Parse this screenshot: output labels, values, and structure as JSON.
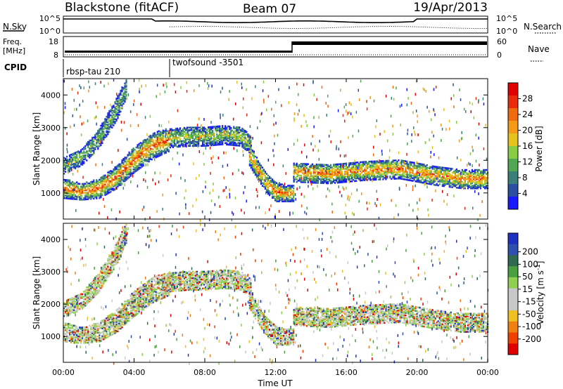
{
  "header": {
    "site": "Blackstone (fitACF)",
    "beam": "Beam 07",
    "date": "19/Apr/2013"
  },
  "top_panels": {
    "nsky_label": "N.Sky",
    "nsearch_label": "N.Search",
    "nsky_ticks": [
      "10^5",
      "10^0"
    ],
    "nsearch_ticks": [
      "10^5",
      "10^0"
    ],
    "freq_label_1": "Freq.",
    "freq_label_2": "[MHz]",
    "freq_ticks": [
      "18",
      "8"
    ],
    "nave_label": "Nave",
    "nave_ticks": [
      "60",
      "0"
    ],
    "cpid_label": "CPID",
    "cpid_segments": [
      {
        "name": "rbsp-tau 210",
        "start_hour": 0,
        "end_hour": 6
      },
      {
        "name": "twofsound -3501",
        "start_hour": 6,
        "end_hour": 24
      }
    ]
  },
  "time_axis": {
    "label": "Time UT",
    "ticks": [
      "00:00",
      "04:00",
      "08:00",
      "12:00",
      "16:00",
      "20:00",
      "00:00"
    ]
  },
  "chart_data": [
    {
      "type": "heatmap",
      "name": "power",
      "ylabel": "Slant Range [km]",
      "yticks": [
        1000,
        2000,
        3000,
        4000
      ],
      "ylim": [
        200,
        4500
      ],
      "xlim_hours": [
        0,
        24
      ],
      "colorbar_label": "Power [dB]",
      "colorbar_ticks": [
        4,
        8,
        12,
        16,
        20,
        24,
        28
      ],
      "colorbar_colors": [
        "#1a1aff",
        "#2b4fa3",
        "#3b7f7a",
        "#52a852",
        "#88cc44",
        "#e6c21a",
        "#f59a14",
        "#f06a10",
        "#e82b0c",
        "#e00000"
      ],
      "echo_bands": [
        {
          "t": [
            0.0,
            1.0,
            2.0,
            3.0,
            4.0,
            5.0,
            6.0
          ],
          "center_km": [
            1150,
            1050,
            1150,
            1500,
            2050,
            2450,
            2650
          ],
          "width_km": [
            300,
            250,
            300,
            350,
            400,
            400,
            350
          ],
          "level": 0.75
        },
        {
          "t": [
            0.0,
            1.0,
            2.0,
            3.0,
            3.6
          ],
          "center_km": [
            1850,
            2100,
            2700,
            3600,
            4300
          ],
          "width_km": [
            250,
            250,
            300,
            350,
            300
          ],
          "level": 0.35
        },
        {
          "t": [
            6.0,
            7.0,
            8.0,
            9.0,
            10.0,
            10.6
          ],
          "center_km": [
            2700,
            2750,
            2750,
            2800,
            2750,
            2500
          ],
          "width_km": [
            300,
            300,
            300,
            300,
            300,
            300
          ],
          "level": 0.45
        },
        {
          "t": [
            10.5,
            11.0,
            11.5,
            12.0,
            12.5,
            13.0
          ],
          "center_km": [
            2200,
            1700,
            1300,
            1050,
            1000,
            1000
          ],
          "width_km": [
            350,
            300,
            300,
            300,
            250,
            250
          ],
          "level": 0.7
        },
        {
          "t": [
            13.0,
            15.0,
            17.0,
            19.0,
            21.0,
            22.5,
            24.0
          ],
          "center_km": [
            1650,
            1600,
            1700,
            1750,
            1550,
            1450,
            1450
          ],
          "width_km": [
            300,
            300,
            300,
            300,
            300,
            300,
            300
          ],
          "level": 0.7
        }
      ]
    },
    {
      "type": "heatmap",
      "name": "velocity",
      "ylabel": "Slant Range [km]",
      "yticks": [
        1000,
        2000,
        3000,
        4000
      ],
      "ylim": [
        200,
        4500
      ],
      "xlim_hours": [
        0,
        24
      ],
      "colorbar_label": "Velocity [m s^-1]",
      "colorbar_ticks": [
        200,
        100,
        50,
        15,
        -15,
        -50,
        -100,
        -200
      ],
      "colorbar_colors": [
        "#2030c0",
        "#3050b0",
        "#306a50",
        "#4aa040",
        "#8fd050",
        "#c8c8c8",
        "#c8c8c8",
        "#f0c020",
        "#f08010",
        "#f04000",
        "#e00000"
      ],
      "echo_bands": [
        {
          "t": [
            0.0,
            1.0,
            2.0,
            3.0,
            4.0,
            5.0,
            6.0
          ],
          "center_km": [
            1150,
            1050,
            1150,
            1500,
            2050,
            2450,
            2650
          ],
          "width_km": [
            300,
            250,
            300,
            350,
            400,
            400,
            350
          ],
          "level": 0.5
        },
        {
          "t": [
            0.0,
            1.0,
            2.0,
            3.0,
            3.6
          ],
          "center_km": [
            1850,
            2100,
            2700,
            3600,
            4300
          ],
          "width_km": [
            250,
            250,
            300,
            350,
            300
          ],
          "level": 0.5
        },
        {
          "t": [
            6.0,
            7.0,
            8.0,
            9.0,
            10.0,
            10.6
          ],
          "center_km": [
            2700,
            2750,
            2750,
            2800,
            2750,
            2500
          ],
          "width_km": [
            300,
            300,
            300,
            300,
            300,
            300
          ],
          "level": 0.5
        },
        {
          "t": [
            10.5,
            11.0,
            11.5,
            12.0,
            12.5,
            13.0
          ],
          "center_km": [
            2200,
            1700,
            1300,
            1050,
            1000,
            1000
          ],
          "width_km": [
            350,
            300,
            300,
            300,
            250,
            250
          ],
          "level": 0.35
        },
        {
          "t": [
            13.0,
            15.0,
            17.0,
            19.0,
            21.0,
            22.5,
            24.0
          ],
          "center_km": [
            1650,
            1600,
            1700,
            1750,
            1550,
            1450,
            1450
          ],
          "width_km": [
            300,
            300,
            300,
            300,
            300,
            300,
            300
          ],
          "level": 0.5
        }
      ]
    }
  ]
}
